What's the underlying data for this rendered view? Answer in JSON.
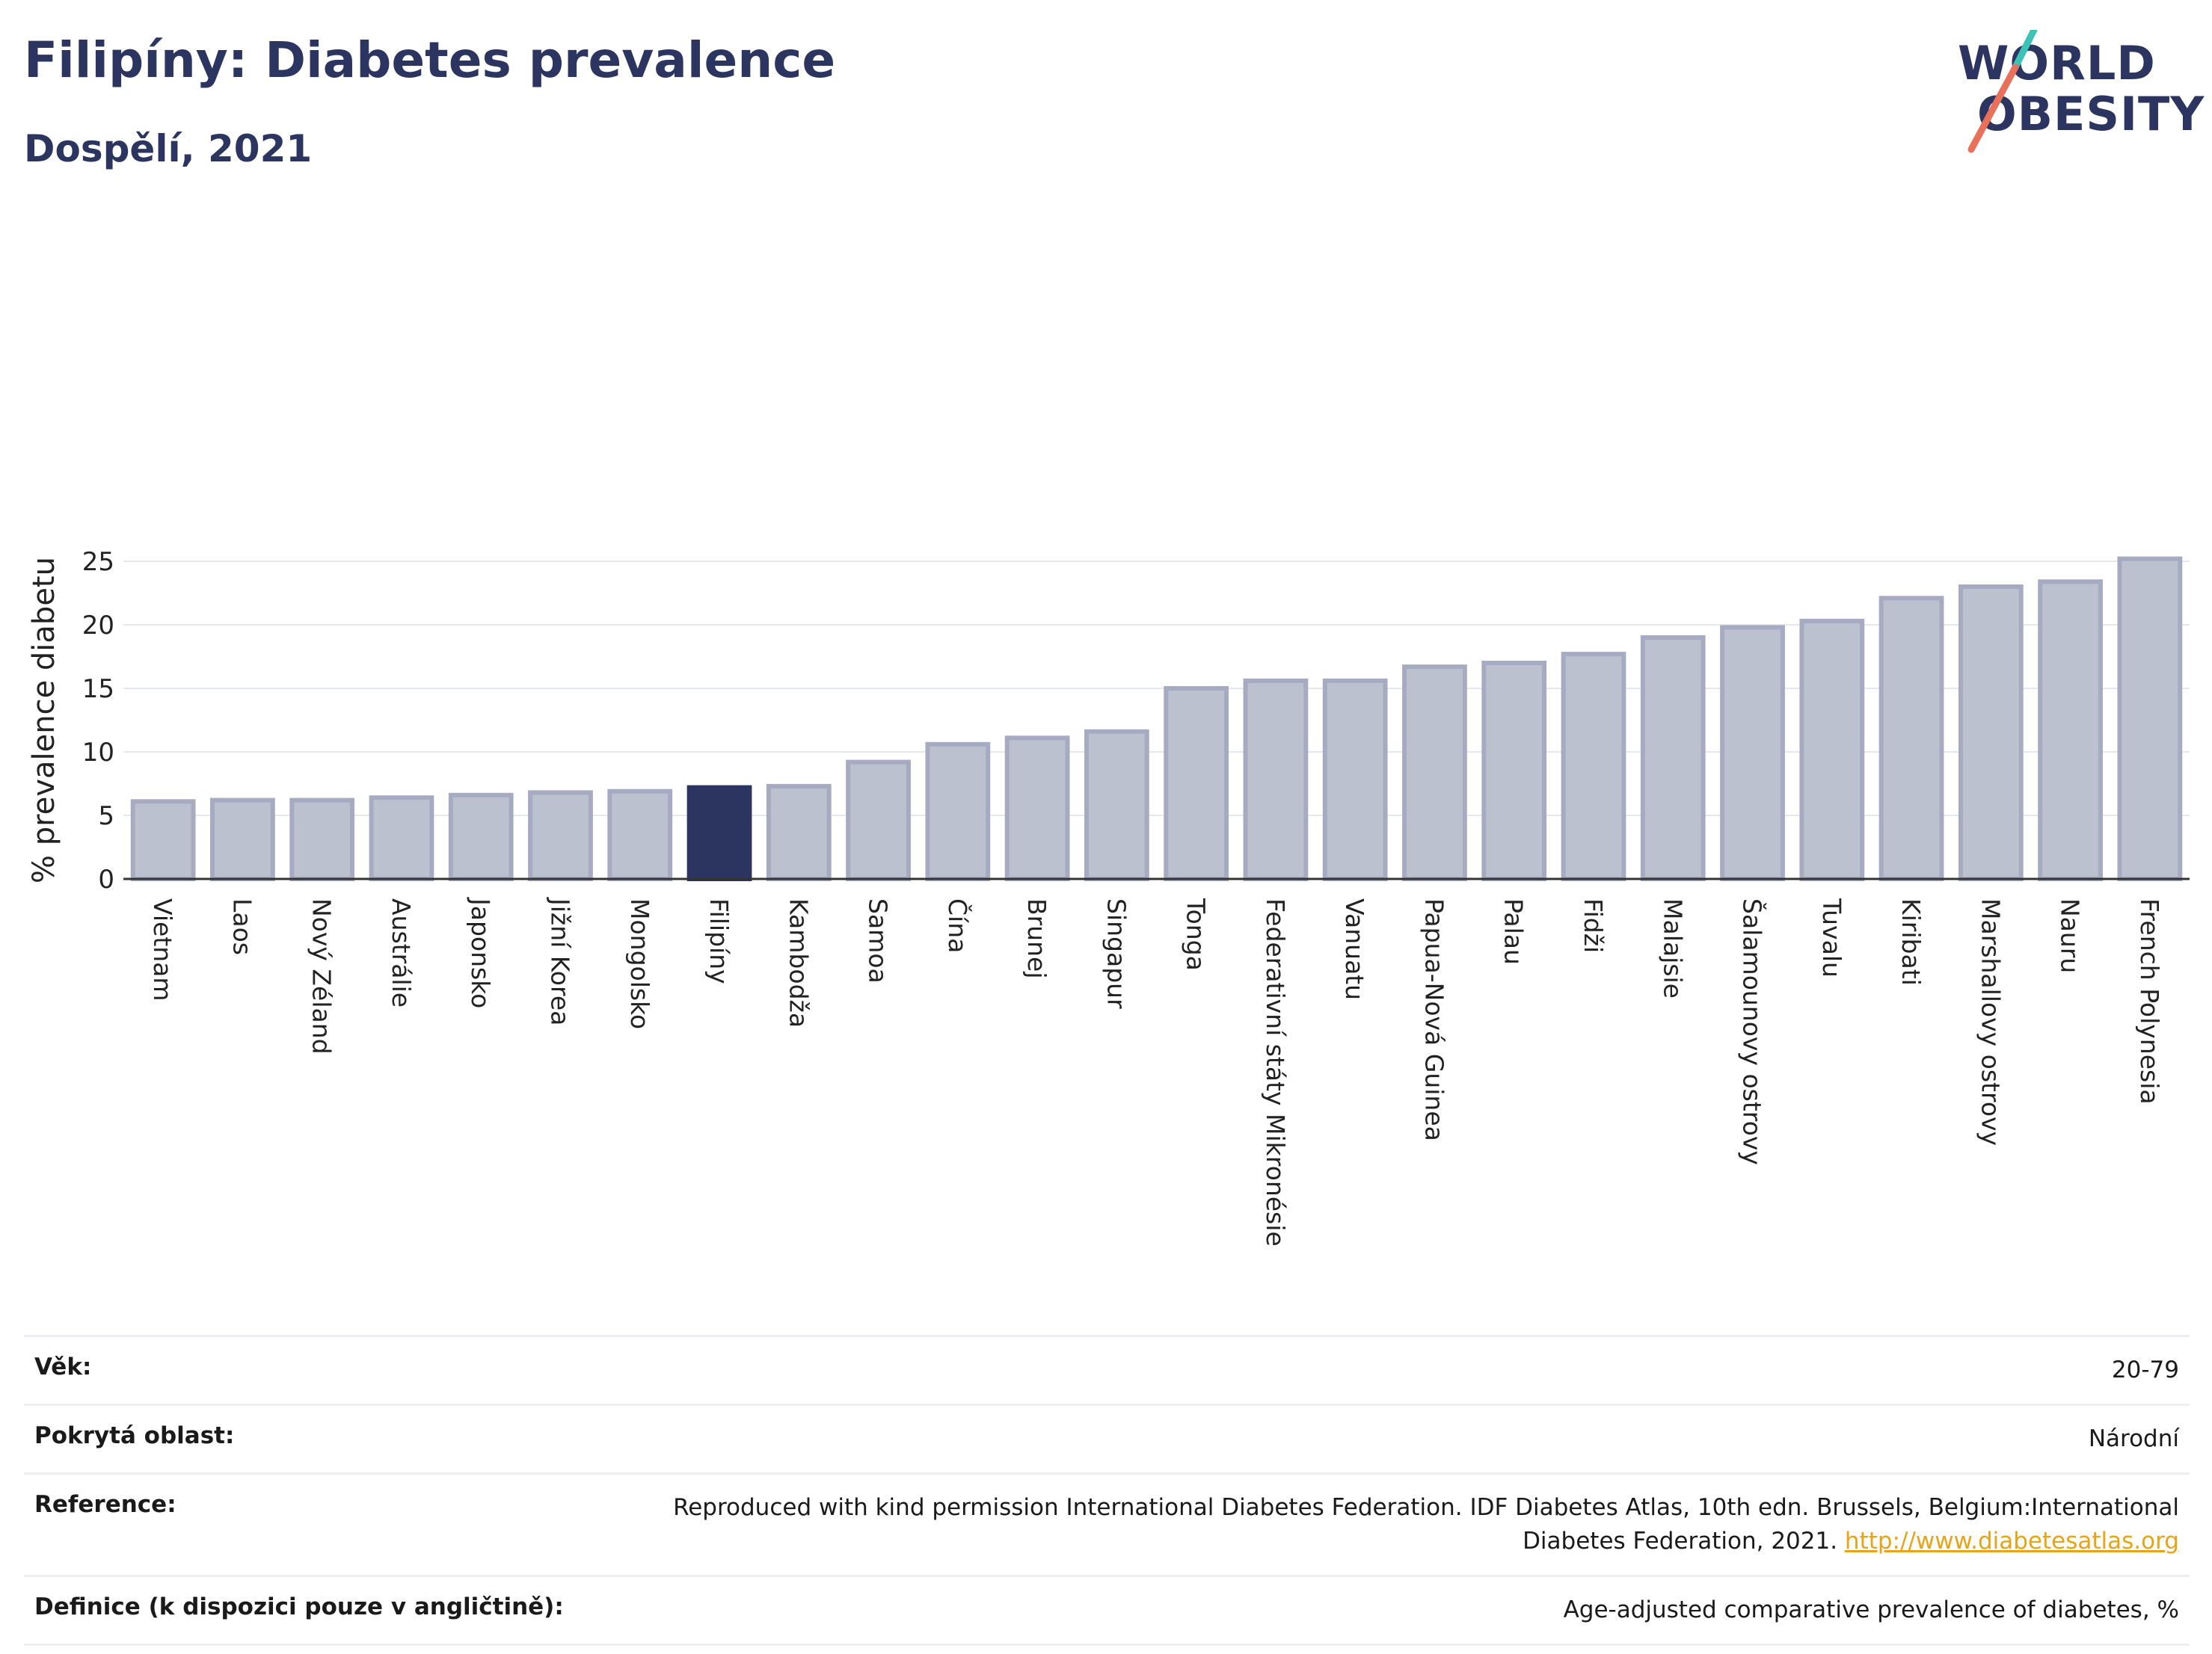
{
  "header": {
    "title": "Filipíny: Diabetes prevalence",
    "subtitle": "Dospělí, 2021",
    "logo_line1": "WORLD",
    "logo_line2": "OBESITY"
  },
  "colors": {
    "bar": "#bcc1cf",
    "bar_border": "#a6abc1",
    "highlight": "#2c3560",
    "axis": "#333333",
    "grid": "#e6e8ef",
    "logo_teal": "#3ec1b7",
    "logo_coral": "#e9705a"
  },
  "chart_data": {
    "type": "bar",
    "title": "",
    "xlabel": "",
    "ylabel": "% prevalence diabetu",
    "ylim": [
      0,
      26
    ],
    "yticks": [
      0,
      5,
      10,
      15,
      20,
      25
    ],
    "grid": true,
    "highlight_category": "Filipíny",
    "categories": [
      "Vietnam",
      "Laos",
      "Nový Zéland",
      "Austrálie",
      "Japonsko",
      "Jižní Korea",
      "Mongolsko",
      "Filipíny",
      "Kambodža",
      "Samoa",
      "Čína",
      "Brunej",
      "Singapur",
      "Tonga",
      "Federativní státy Mikronésie",
      "Vanuatu",
      "Papua-Nová Guinea",
      "Palau",
      "Fidži",
      "Malajsie",
      "Šalamounovy ostrovy",
      "Tuvalu",
      "Kiribati",
      "Marshallovy ostrovy",
      "Nauru",
      "French Polynesia"
    ],
    "values": [
      6.1,
      6.2,
      6.2,
      6.4,
      6.6,
      6.8,
      6.9,
      7.2,
      7.3,
      9.2,
      10.6,
      11.1,
      11.6,
      15.0,
      15.6,
      15.6,
      16.7,
      17.0,
      17.7,
      19.0,
      19.8,
      20.3,
      22.1,
      23.0,
      23.4,
      25.2
    ]
  },
  "info": [
    {
      "label": "Věk:",
      "value": "20-79"
    },
    {
      "label": "Pokrytá oblast:",
      "value": "Národní"
    },
    {
      "label": "Reference:",
      "value": "Reproduced with kind permission International Diabetes Federation.  IDF Diabetes Atlas, 10th edn. Brussels, Belgium:International Diabetes Federation, 2021.",
      "link": "http://www.diabetesatlas.org"
    },
    {
      "label": "Definice (k dispozici pouze v angličtině):",
      "value": "Age-adjusted comparative prevalence of diabetes, %"
    }
  ]
}
